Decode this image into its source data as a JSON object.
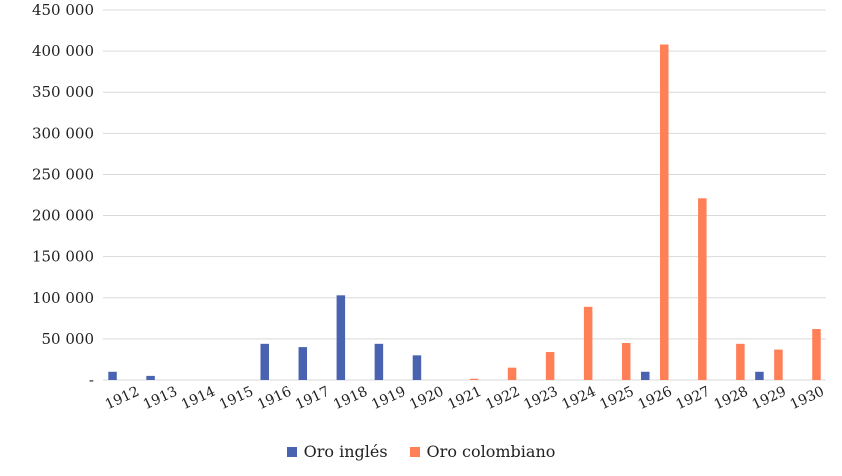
{
  "chart_data": {
    "type": "bar",
    "categories": [
      "1912",
      "1913",
      "1914",
      "1915",
      "1916",
      "1917",
      "1918",
      "1919",
      "1920",
      "1921",
      "1922",
      "1923",
      "1924",
      "1925",
      "1926",
      "1927",
      "1928",
      "1929",
      "1930"
    ],
    "series": [
      {
        "name": "Oro inglés",
        "color": "#4a63b0",
        "values": [
          10000,
          5000,
          0,
          0,
          44000,
          40000,
          103000,
          44000,
          30000,
          0,
          0,
          0,
          0,
          0,
          10000,
          0,
          0,
          10000,
          0
        ]
      },
      {
        "name": "Oro colombiano",
        "color": "#ff7f57",
        "values": [
          0,
          0,
          0,
          0,
          0,
          0,
          0,
          0,
          0,
          1500,
          15000,
          34000,
          89000,
          45000,
          408000,
          221000,
          44000,
          37000,
          62000
        ]
      }
    ],
    "ylim": [
      0,
      450000
    ],
    "yticks": [
      {
        "value": 0,
        "label": "-"
      },
      {
        "value": 50000,
        "label": "50 000"
      },
      {
        "value": 100000,
        "label": "100 000"
      },
      {
        "value": 150000,
        "label": "150 000"
      },
      {
        "value": 200000,
        "label": "200 000"
      },
      {
        "value": 250000,
        "label": "250 000"
      },
      {
        "value": 300000,
        "label": "300 000"
      },
      {
        "value": 350000,
        "label": "350 000"
      },
      {
        "value": 400000,
        "label": "400 000"
      },
      {
        "value": 450000,
        "label": "450 000"
      }
    ],
    "grid": true,
    "legend_position": "bottom",
    "title": "",
    "xlabel": "",
    "ylabel": ""
  }
}
